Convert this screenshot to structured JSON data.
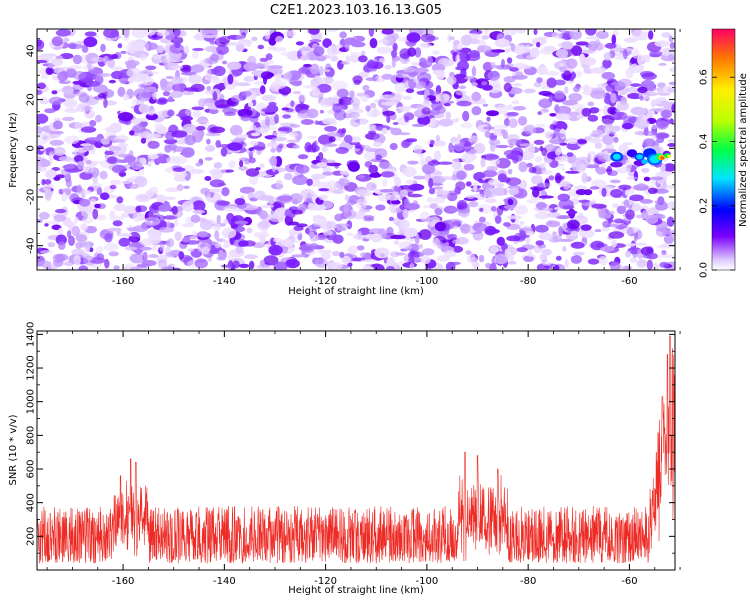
{
  "figure_title": "C2E1.2023.103.16.13.G05",
  "chart_data": [
    {
      "type": "heatmap",
      "xlabel": "Height of straight line (km)",
      "ylabel": "Frequency (Hz)",
      "xlim": [
        -177,
        -51
      ],
      "ylim": [
        -50,
        49
      ],
      "xticks": [
        "-160",
        "-140",
        "-120",
        "-100",
        "-80",
        "-60"
      ],
      "yticks": [
        "-40",
        "-20",
        "0",
        "20",
        "40"
      ],
      "colorbar": {
        "label": "Normalized spectral amplitude",
        "range": [
          0.0,
          0.75
        ],
        "ticks": [
          "0.0",
          "0.2",
          "0.4",
          "0.6"
        ]
      },
      "background_level": [
        0.0,
        0.12
      ],
      "hotspot": {
        "x_range": [
          -64,
          -52
        ],
        "y_range": [
          -6,
          2
        ],
        "peak": 0.45
      }
    },
    {
      "type": "line",
      "xlabel": "Height of straight line (km)",
      "ylabel": "SNR (10 * v/v)",
      "xlim": [
        -177,
        -51
      ],
      "ylim": [
        0,
        1420
      ],
      "xticks": [
        "-160",
        "-140",
        "-120",
        "-100",
        "-80",
        "-60"
      ],
      "yticks": [
        "200",
        "400",
        "600",
        "800",
        "1000",
        "1200",
        "1400"
      ],
      "baseline": [
        40,
        380
      ],
      "peaks": [
        {
          "x": -160.5,
          "y": 560
        },
        {
          "x": -158.5,
          "y": 660
        },
        {
          "x": -157.5,
          "y": 640
        },
        {
          "x": -92.5,
          "y": 700
        },
        {
          "x": -90,
          "y": 680
        },
        {
          "x": -86,
          "y": 600
        },
        {
          "x": -53.5,
          "y": 1030
        },
        {
          "x": -52.5,
          "y": 1280
        },
        {
          "x": -52,
          "y": 1390
        }
      ],
      "color": "#ee2a24"
    }
  ]
}
